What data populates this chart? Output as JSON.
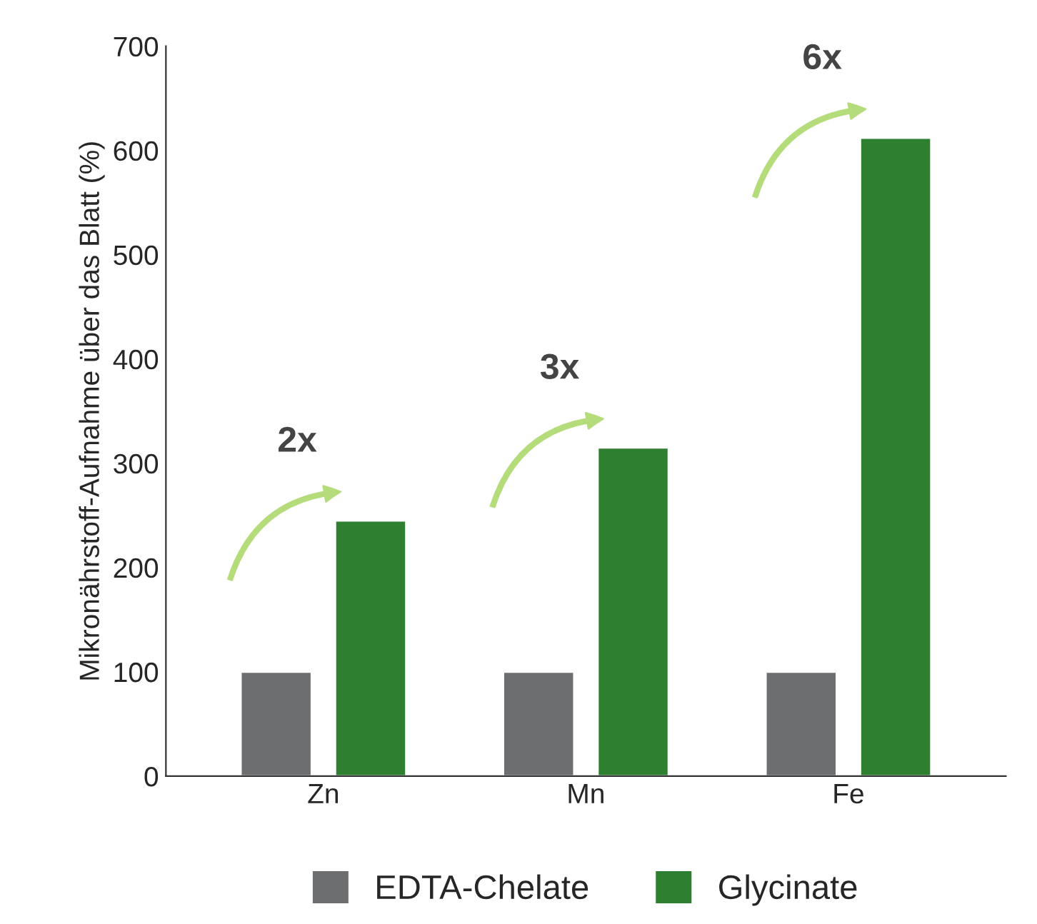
{
  "chart_data": {
    "type": "bar",
    "ylabel": "Mikronährstoff-Aufnahme über das Blatt (%)",
    "categories": [
      "Zn",
      "Mn",
      "Fe"
    ],
    "series": [
      {
        "name": "EDTA-Chelate",
        "color": "#6d6e70",
        "values": [
          100,
          100,
          100
        ]
      },
      {
        "name": "Glycinate",
        "color": "#2f7f31",
        "values": [
          245,
          315,
          612
        ]
      }
    ],
    "ylim": [
      0,
      700
    ],
    "yticks": [
      0,
      100,
      200,
      300,
      400,
      500,
      600,
      700
    ],
    "grid": false,
    "legend": "bottom",
    "annotations": [
      "2x",
      "3x",
      "6x"
    ]
  }
}
